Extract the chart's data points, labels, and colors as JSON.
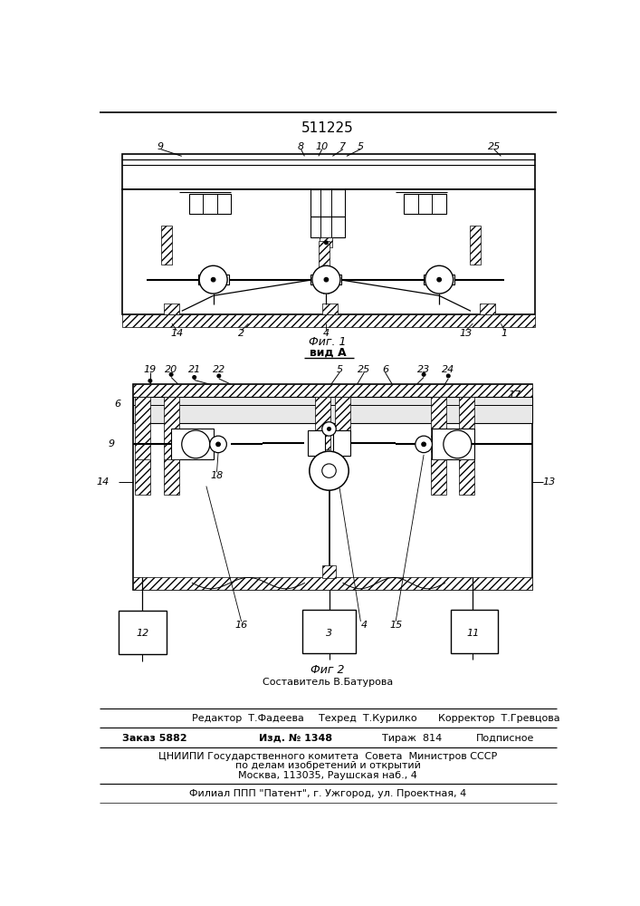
{
  "patent_number": "511225",
  "fig1_label": "Фиг. 1",
  "fig2_label": "Фиг 2",
  "view_label": "вид А",
  "composer": "Составитель В.Батурова",
  "editor": "Редактор  Т.Фадеева",
  "tech": "Техред  Т.Курилко",
  "corrector": "Корректор  Т.Гревцова",
  "order": "Заказ 5882",
  "issue": "Изд. № 1348",
  "copies": "Тираж  814",
  "subscription": "Подписное",
  "org_line1": "ЦНИИПИ Государственного комитета  Совета  Министров СССР",
  "org_line2": "по делам изобретений и открытий",
  "org_line3": "Москва, 113035, Раушская наб., 4",
  "branch": "Филиал ППП \"Патент\", г. Ужгород, ул. Проектная, 4",
  "bg_color": "#ffffff"
}
